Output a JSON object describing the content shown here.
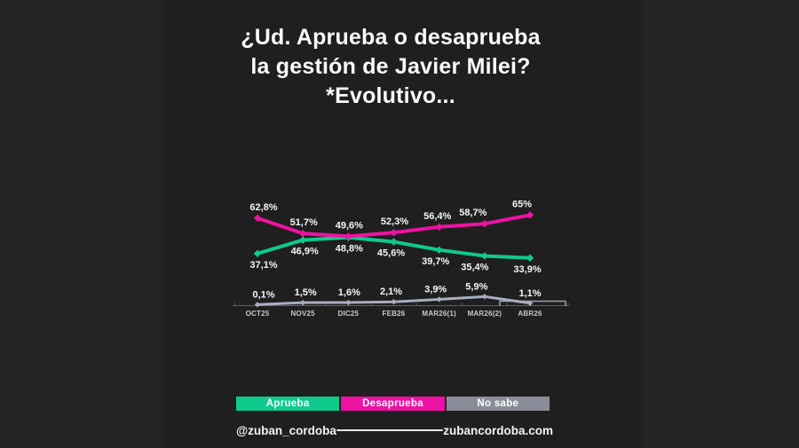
{
  "title": {
    "line1": "¿Ud. Aprueba o desaprueba",
    "line2": "la gestión de Javier Milei?",
    "line3": "*Evolutivo..."
  },
  "chart_data": {
    "type": "line",
    "title": "¿Ud. Aprueba o desaprueba la gestión de Javier Milei? *Evolutivo...",
    "categories": [
      "OCT25",
      "NOV25",
      "DIC25",
      "FEB26",
      "MAR26(1)",
      "MAR26(2)",
      "ABR26"
    ],
    "series": [
      {
        "name": "Aprueba",
        "color": "#10C98C",
        "values": [
          37.1,
          46.9,
          48.8,
          45.6,
          39.7,
          35.4,
          33.9
        ],
        "labels": [
          "37,1%",
          "46,9%",
          "48,8%",
          "45,6%",
          "39,7%",
          "35,4%",
          "33,9%"
        ],
        "label_position": "below"
      },
      {
        "name": "Desaprueba",
        "color": "#ED12A2",
        "values": [
          62.8,
          51.7,
          49.6,
          52.3,
          56.4,
          58.7,
          65
        ],
        "labels": [
          "62,8%",
          "51,7%",
          "49,6%",
          "52,3%",
          "56,4%",
          "58,7%",
          "65%"
        ],
        "label_position": "above"
      },
      {
        "name": "No sabe",
        "color": "#A9AEC2",
        "values": [
          0.1,
          1.5,
          1.6,
          2.1,
          3.9,
          5.9,
          1.1
        ],
        "labels": [
          "0,1%",
          "1,5%",
          "1,6%",
          "2,1%",
          "3,9%",
          "5,9%",
          "1,1%"
        ],
        "label_position": "above"
      }
    ],
    "ylim": [
      0,
      70
    ],
    "grid": false,
    "legend_position": "bottom",
    "highlighted_category": "ABR26",
    "axis_color": "#5d5f66",
    "highlight_bracket_color": "#9c9fa8"
  },
  "legend": {
    "items": [
      {
        "label": "Aprueba",
        "color": "#10C98C"
      },
      {
        "label": "Desaprueba",
        "color": "#ED12A2"
      },
      {
        "label": "No sabe",
        "color": "#8A8D99"
      }
    ]
  },
  "footer": {
    "handle": "@zuban_cordoba",
    "website": "zubancordoba.com"
  }
}
